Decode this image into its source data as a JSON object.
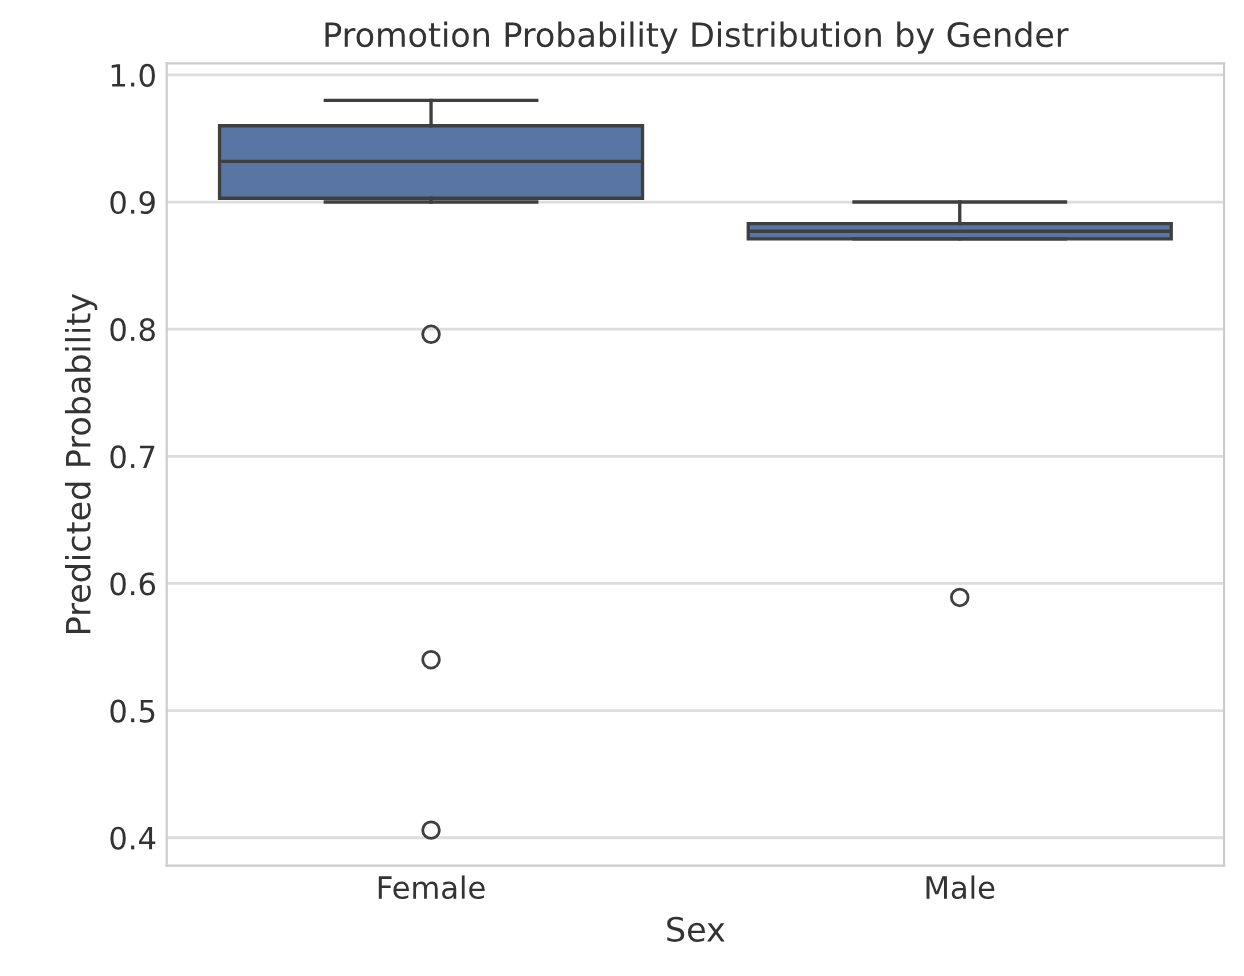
{
  "chart_data": {
    "type": "box",
    "title": "Promotion Probability Distribution by Gender",
    "xlabel": "Sex",
    "ylabel": "Predicted Probability",
    "categories": [
      "Female",
      "Male"
    ],
    "series": [
      {
        "color": "#5975a4",
        "boxes": [
          {
            "low": 0.9,
            "q1": 0.903,
            "median": 0.932,
            "q3": 0.96,
            "high": 0.98,
            "outliers": [
              0.796,
              0.54,
              0.406
            ]
          },
          {
            "low": 0.871,
            "q1": 0.871,
            "median": 0.877,
            "q3": 0.883,
            "high": 0.9,
            "outliers": [
              0.589
            ]
          }
        ]
      }
    ],
    "ylim": [
      0.378,
      1.009
    ],
    "yticks": [
      0.4,
      0.5,
      0.6,
      0.7,
      0.8,
      0.9,
      {
        "value": 1.0,
        "label": "1.0"
      }
    ],
    "grid": "y",
    "legend": false
  }
}
